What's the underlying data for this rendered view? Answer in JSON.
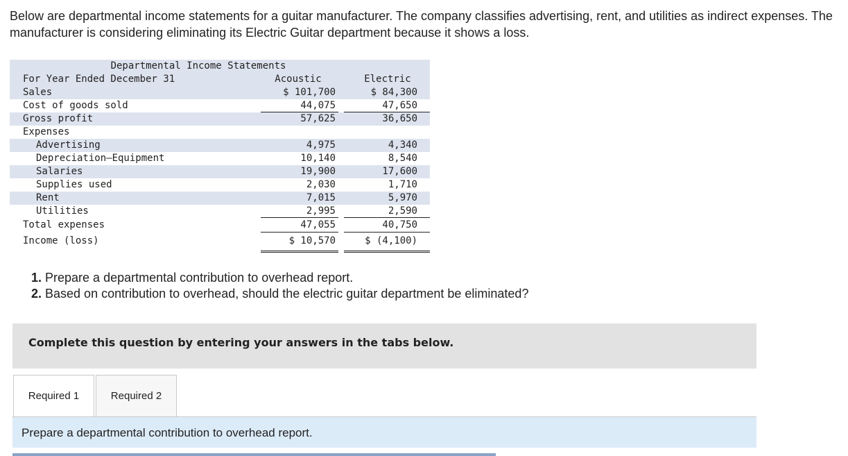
{
  "intro": "Below are departmental income statements for a guitar manufacturer. The company classifies advertising, rent, and utilities as indirect expenses. The manufacturer is considering eliminating its Electric Guitar department because it shows a loss.",
  "statement": {
    "title": "Departmental Income Statements",
    "period_label": "For Year Ended December 31",
    "col1_header": "Acoustic",
    "col2_header": "Electric",
    "rows": {
      "sales": {
        "label": "Sales",
        "v1": "$ 101,700",
        "v2": "$ 84,300"
      },
      "cogs": {
        "label": "Cost of goods sold",
        "v1": "44,075",
        "v2": "47,650"
      },
      "gross": {
        "label": "Gross profit",
        "v1": "57,625",
        "v2": "36,650"
      },
      "expenses": {
        "label": "Expenses"
      },
      "advertising": {
        "label": "Advertising",
        "v1": "4,975",
        "v2": "4,340"
      },
      "depreciation": {
        "label": "Depreciation—Equipment",
        "v1": "10,140",
        "v2": "8,540"
      },
      "salaries": {
        "label": "Salaries",
        "v1": "19,900",
        "v2": "17,600"
      },
      "supplies": {
        "label": "Supplies used",
        "v1": "2,030",
        "v2": "1,710"
      },
      "rent": {
        "label": "Rent",
        "v1": "7,015",
        "v2": "5,970"
      },
      "utilities": {
        "label": "Utilities",
        "v1": "2,995",
        "v2": "2,590"
      },
      "total": {
        "label": "Total expenses",
        "v1": "47,055",
        "v2": "40,750"
      },
      "income": {
        "label": "Income (loss)",
        "v1": "$ 10,570",
        "v2": "$ (4,100)"
      }
    }
  },
  "questions": {
    "q1_num": "1.",
    "q1_text": " Prepare a departmental contribution to overhead report.",
    "q2_num": "2.",
    "q2_text": " Based on contribution to overhead, should the electric guitar department be eliminated?"
  },
  "banner": "Complete this question by entering your answers in the tabs below.",
  "tabs": [
    "Required 1",
    "Required 2"
  ],
  "panel_text": "Prepare a departmental contribution to overhead report.",
  "colors": {
    "shade": "#dde3ee",
    "banner": "#e2e2e2",
    "panel": "#dcebf8"
  }
}
